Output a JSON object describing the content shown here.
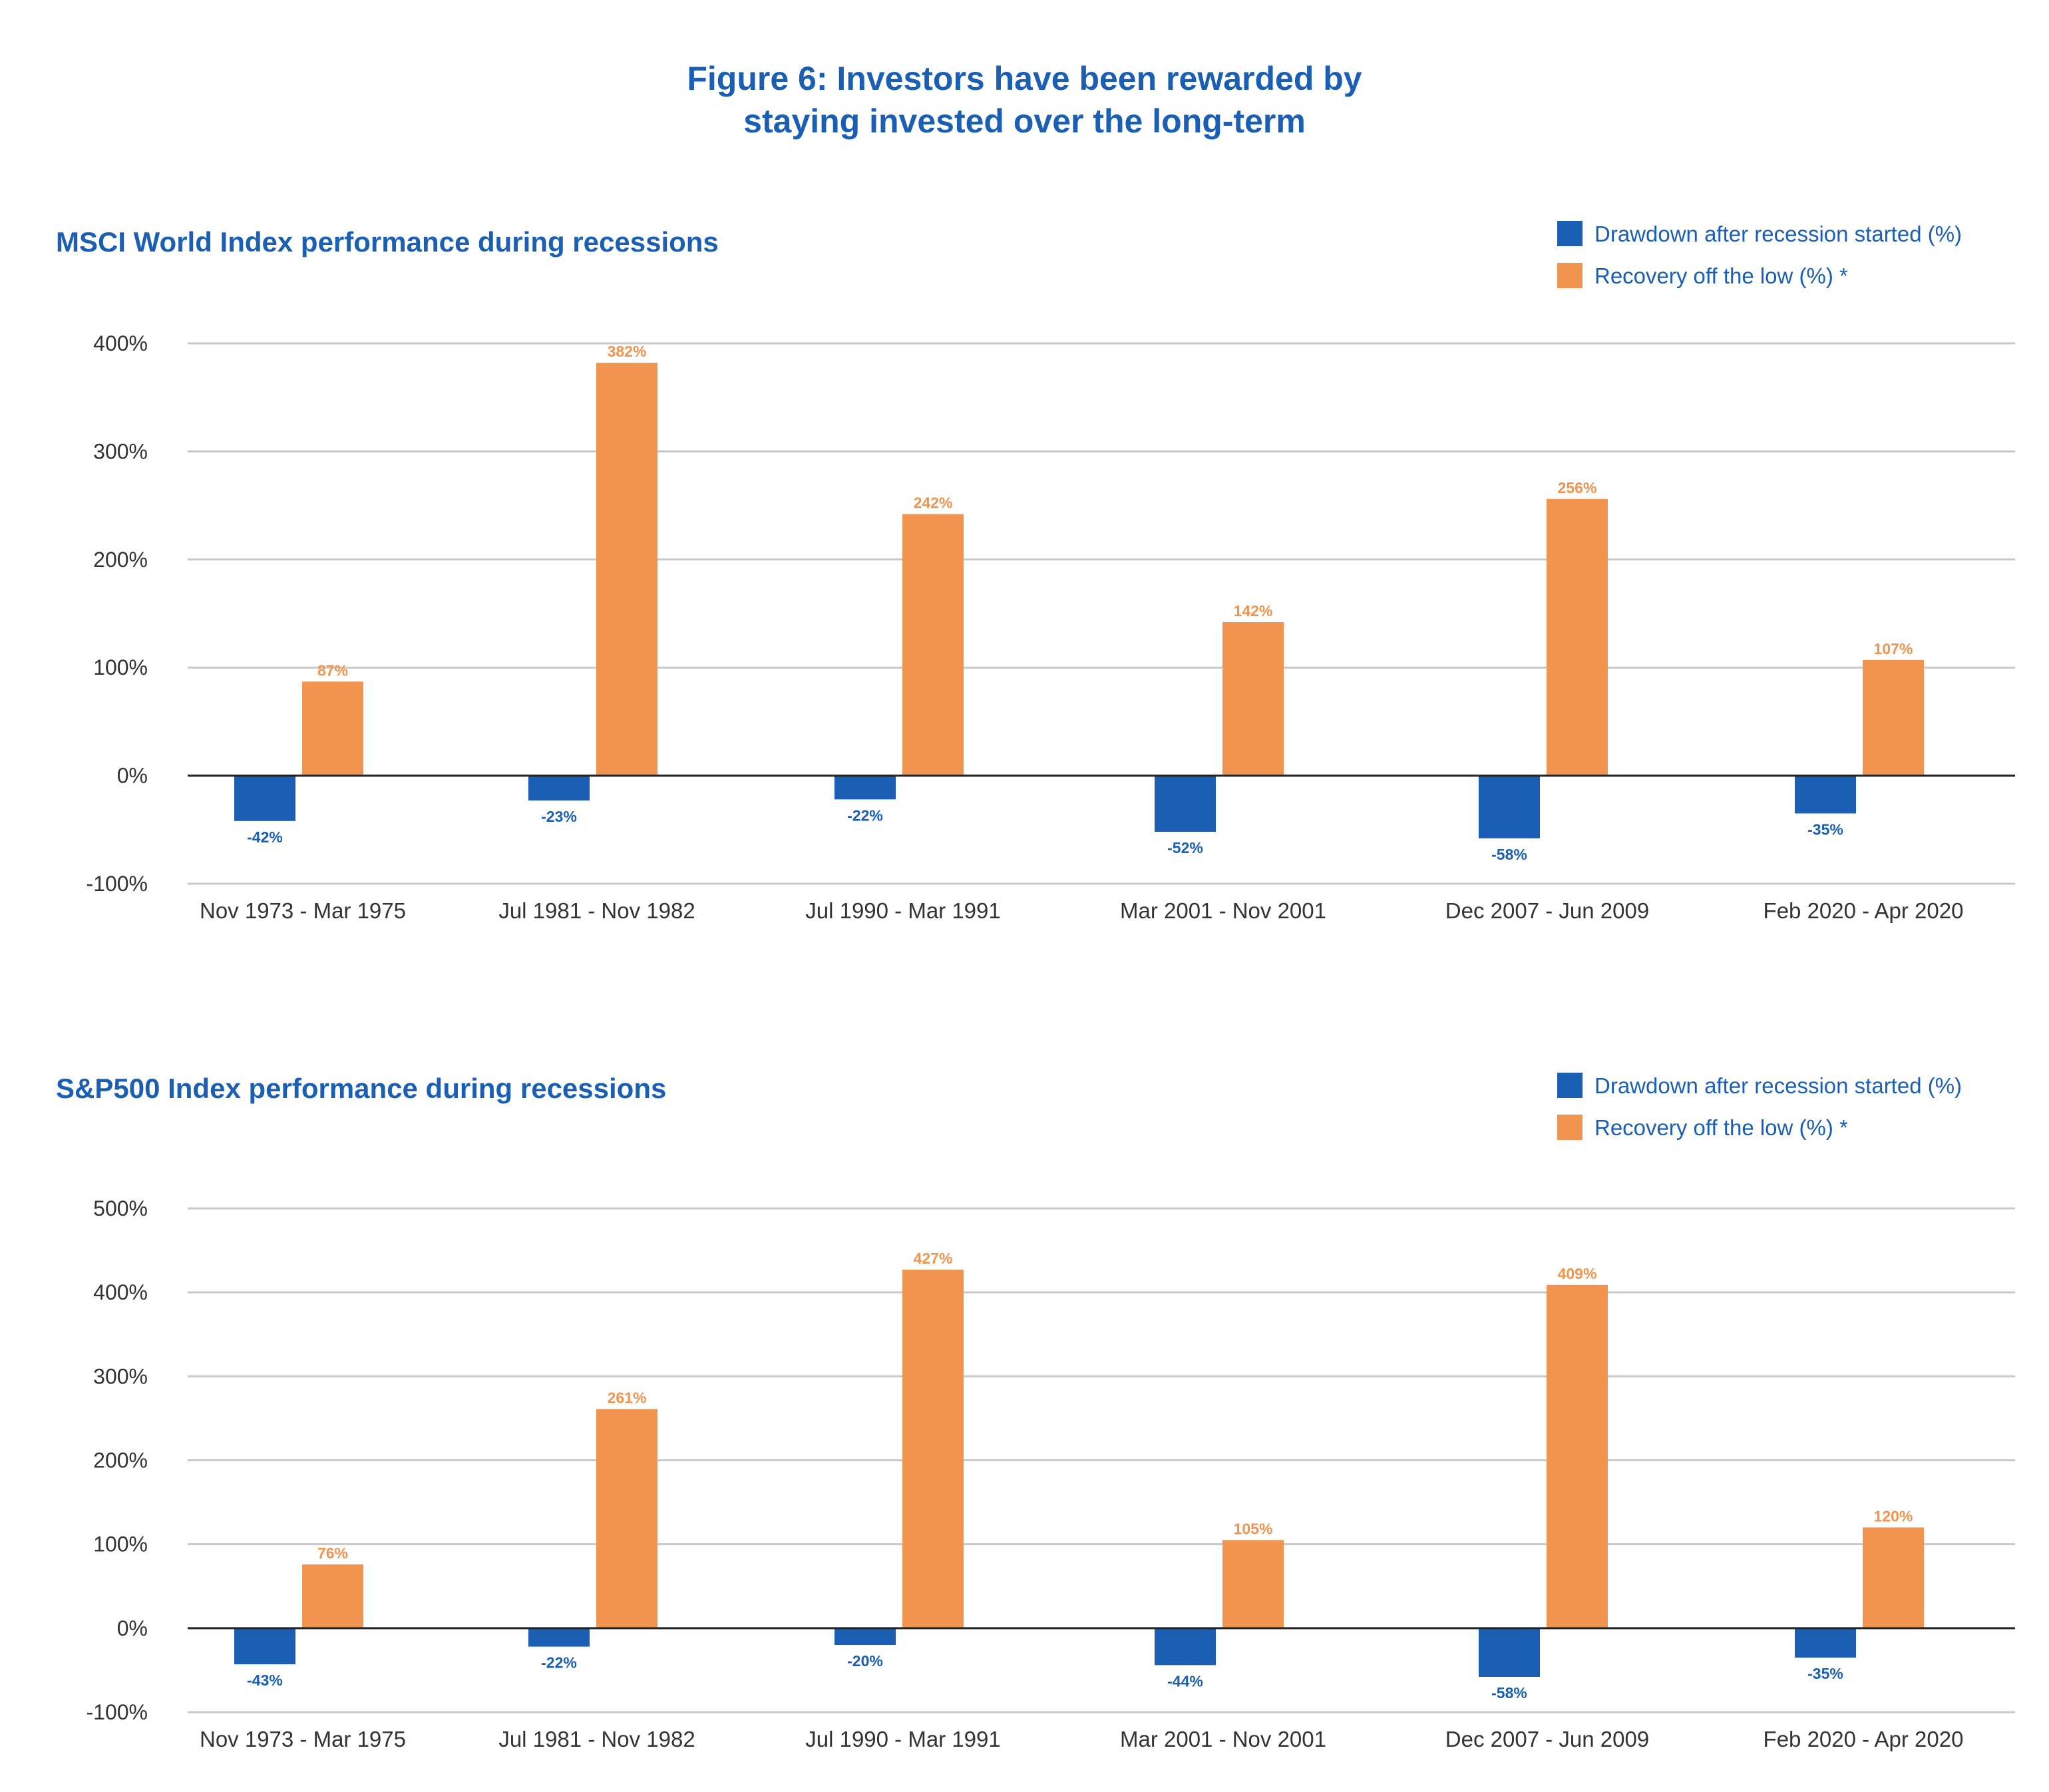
{
  "figure": {
    "title_line1": "Figure 6: Investors have been rewarded by",
    "title_line2": "staying invested over the long-term"
  },
  "chart_data": [
    {
      "type": "bar",
      "title": "MSCI World Index performance during recessions",
      "categories": [
        "Nov 1973 - Mar 1975",
        "Jul 1981 - Nov 1982",
        "Jul 1990 - Mar 1991",
        "Mar 2001 - Nov 2001",
        "Dec 2007 - Jun 2009",
        "Feb 2020 - Apr 2020"
      ],
      "series": [
        {
          "name": "Drawdown after recession started (%)",
          "color": "#1a5fb4",
          "values": [
            -42,
            -23,
            -22,
            -52,
            -58,
            -35
          ],
          "labels": [
            "-42%",
            "-23%",
            "-22%",
            "-52%",
            "-58%",
            "-35%"
          ]
        },
        {
          "name": "Recovery off the low (%) *",
          "color": "#f0944f",
          "values": [
            87,
            382,
            242,
            142,
            256,
            107
          ],
          "labels": [
            "87%",
            "382%",
            "242%",
            "142%",
            "256%",
            "107%"
          ]
        }
      ],
      "ylim": [
        -100,
        400
      ],
      "yticks": [
        -100,
        0,
        100,
        200,
        300,
        400
      ],
      "ytick_labels": [
        "-100%",
        "0%",
        "100%",
        "200%",
        "300%",
        "400%"
      ],
      "grid": true,
      "legend_position": "top-right"
    },
    {
      "type": "bar",
      "title": "S&P500 Index performance during recessions",
      "categories": [
        "Nov 1973 - Mar 1975",
        "Jul 1981 - Nov 1982",
        "Jul 1990 - Mar 1991",
        "Mar 2001 - Nov 2001",
        "Dec 2007 - Jun 2009",
        "Feb 2020 - Apr 2020"
      ],
      "series": [
        {
          "name": "Drawdown after recession started (%)",
          "color": "#1a5fb4",
          "values": [
            -43,
            -22,
            -20,
            -44,
            -58,
            -35
          ],
          "labels": [
            "-43%",
            "-22%",
            "-20%",
            "-44%",
            "-58%",
            "-35%"
          ]
        },
        {
          "name": "Recovery off the low (%) *",
          "color": "#f0944f",
          "values": [
            76,
            261,
            427,
            105,
            409,
            120
          ],
          "labels": [
            "76%",
            "261%",
            "427%",
            "105%",
            "409%",
            "120%"
          ]
        }
      ],
      "ylim": [
        -100,
        500
      ],
      "yticks": [
        -100,
        0,
        100,
        200,
        300,
        400,
        500
      ],
      "ytick_labels": [
        "-100%",
        "0%",
        "100%",
        "200%",
        "300%",
        "400%",
        "500%"
      ],
      "grid": true,
      "legend_position": "top-right"
    }
  ]
}
